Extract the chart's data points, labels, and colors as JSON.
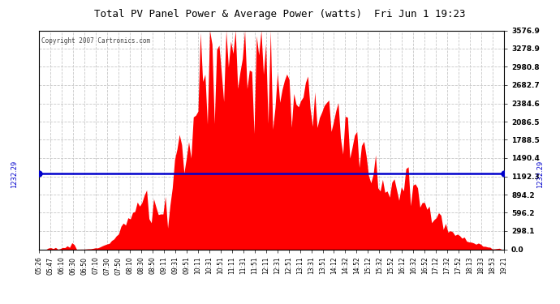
{
  "title": "Total PV Panel Power & Average Power (watts)  Fri Jun 1 19:23",
  "copyright_text": "Copyright 2007 Cartronics.com",
  "average_power": 1232.29,
  "y_max": 3576.9,
  "y_ticks": [
    0.0,
    298.1,
    596.2,
    894.2,
    1192.3,
    1490.4,
    1788.5,
    2086.5,
    2384.6,
    2682.7,
    2980.8,
    3278.9,
    3576.9
  ],
  "background_color": "#ffffff",
  "bar_color": "#ff0000",
  "avg_line_color": "#0000cc",
  "grid_color": "#c8c8c8",
  "title_color": "#000000",
  "x_labels": [
    "05:26",
    "05:47",
    "06:10",
    "06:30",
    "06:50",
    "07:10",
    "07:30",
    "07:50",
    "08:10",
    "08:30",
    "08:50",
    "09:11",
    "09:31",
    "09:51",
    "10:11",
    "10:31",
    "10:51",
    "11:11",
    "11:31",
    "11:51",
    "12:11",
    "12:31",
    "12:51",
    "13:11",
    "13:31",
    "13:51",
    "14:12",
    "14:32",
    "14:52",
    "15:12",
    "15:32",
    "15:52",
    "16:12",
    "16:32",
    "16:52",
    "17:12",
    "17:32",
    "17:52",
    "18:13",
    "18:33",
    "18:53",
    "19:21"
  ],
  "num_points": 200
}
